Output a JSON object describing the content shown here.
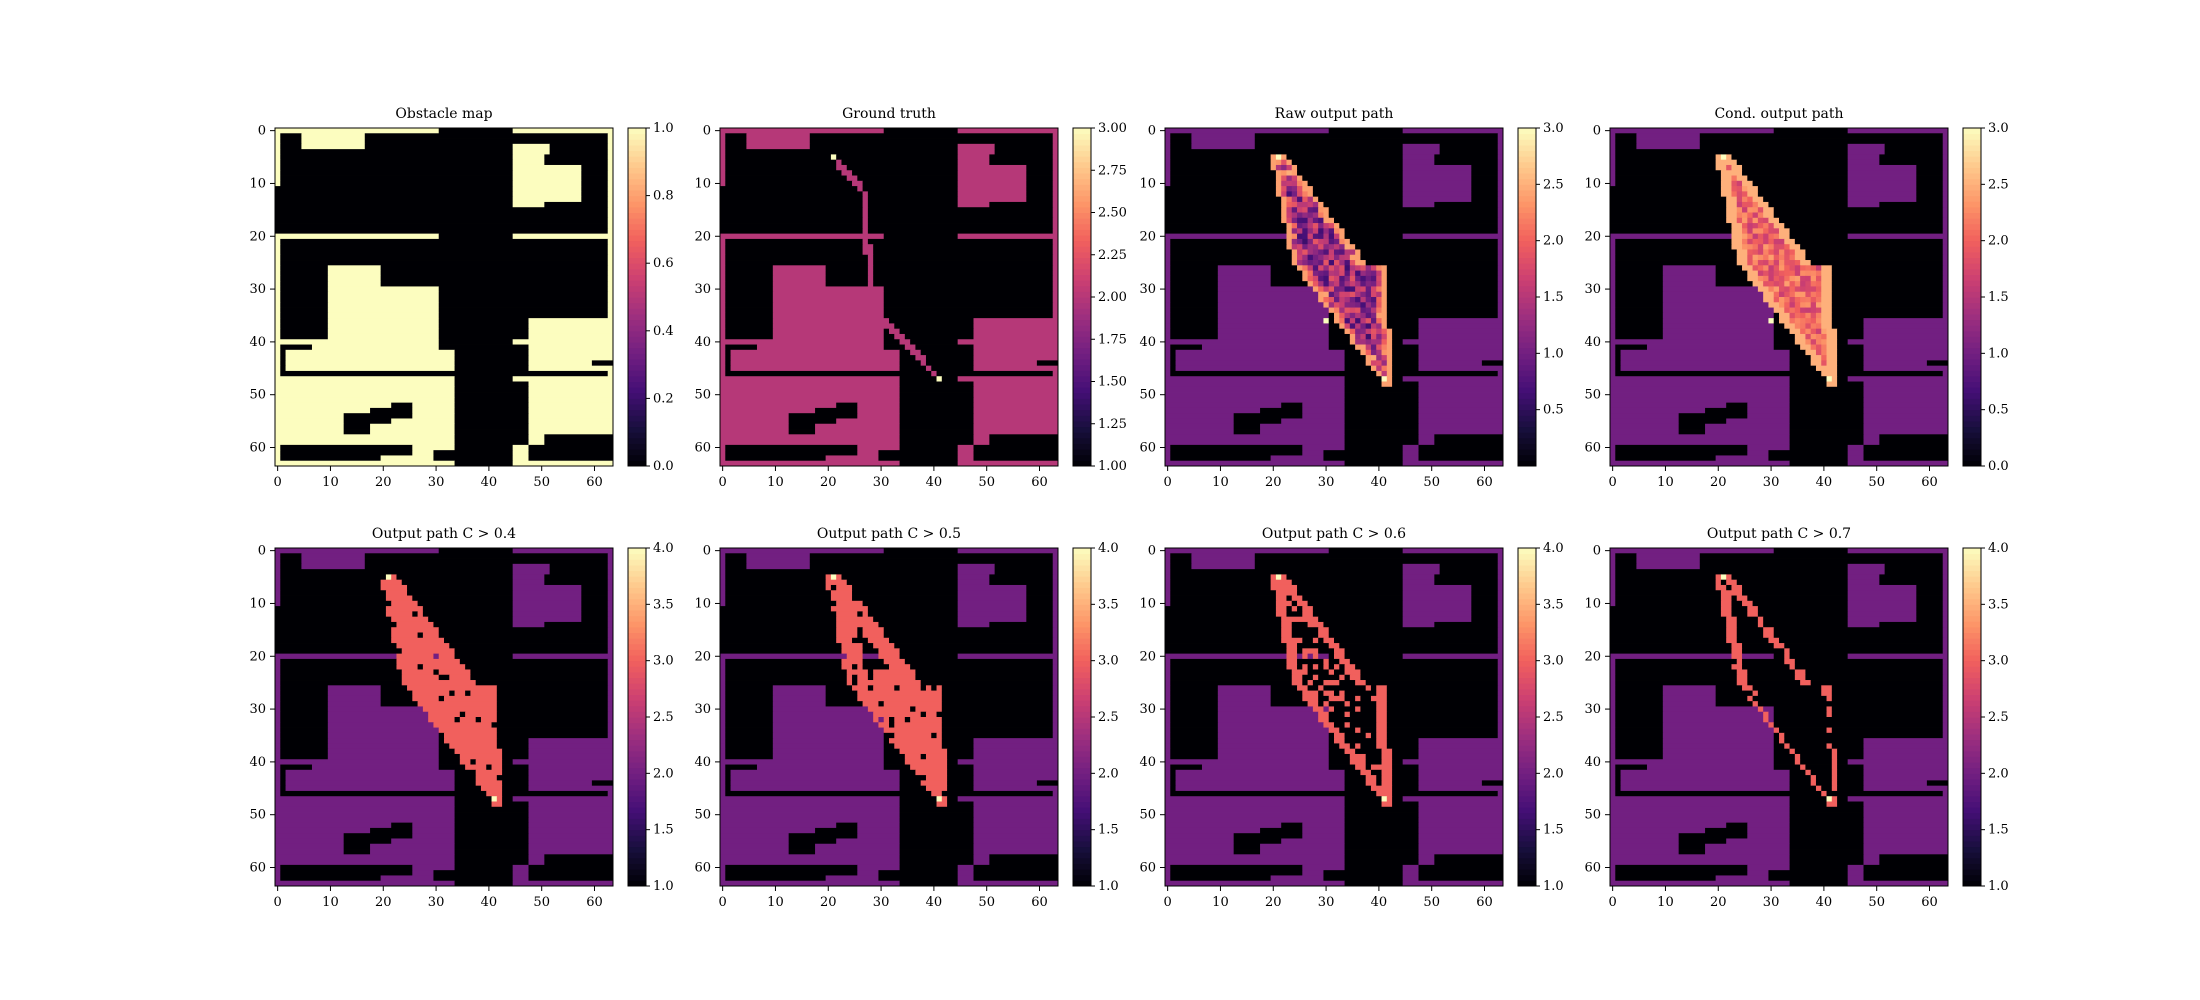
{
  "figure": {
    "type": "heatmap",
    "grid_size": 64,
    "x_ticks": [
      0,
      10,
      20,
      30,
      40,
      50,
      60
    ],
    "y_ticks": [
      0,
      10,
      20,
      30,
      40,
      50,
      60
    ]
  },
  "colormap_stops": [
    "#000004",
    "#180f3d",
    "#440f76",
    "#721f81",
    "#9e2f7f",
    "#cd4071",
    "#f1605d",
    "#fd9668",
    "#feca8d",
    "#fcfdbf"
  ],
  "chart_data": [
    {
      "type": "heatmap",
      "title": "Obstacle map",
      "colorbar": {
        "min": 0.0,
        "max": 1.0,
        "ticks": [
          "0.0",
          "0.2",
          "0.4",
          "0.6",
          "0.8",
          "1.0"
        ]
      },
      "layers": {
        "free": 1.0,
        "obstacle": 0.0
      }
    },
    {
      "type": "heatmap",
      "title": "Ground truth",
      "colorbar": {
        "min": 1.0,
        "max": 3.0,
        "ticks": [
          "1.00",
          "1.25",
          "1.50",
          "1.75",
          "2.00",
          "2.25",
          "2.50",
          "2.75",
          "3.00"
        ]
      },
      "layers": {
        "free": 2.0,
        "obstacle": 1.0,
        "path": 2.0,
        "endpoints": 3.0
      },
      "path_waypoints": [
        [
          21,
          5
        ],
        [
          27,
          12
        ],
        [
          28,
          33
        ],
        [
          41,
          47
        ]
      ]
    },
    {
      "type": "heatmap",
      "title": "Raw output path",
      "colorbar": {
        "min": 0.0,
        "max": 3.0,
        "ticks": [
          "0.5",
          "1.0",
          "1.5",
          "2.0",
          "2.5",
          "3.0"
        ]
      },
      "layers": {
        "free": 1.0,
        "obstacle": 0.0,
        "path_region": "0.3-2.6",
        "endpoints": 3.0
      }
    },
    {
      "type": "heatmap",
      "title": "Cond. output path",
      "colorbar": {
        "min": 0.0,
        "max": 3.0,
        "ticks": [
          "0.0",
          "0.5",
          "1.0",
          "1.5",
          "2.0",
          "2.5",
          "3.0"
        ]
      },
      "layers": {
        "free": 1.0,
        "obstacle": 0.0,
        "path_region": "1.3-2.6",
        "endpoints": 3.0
      }
    },
    {
      "type": "heatmap",
      "title": "Output path C > 0.4",
      "colorbar": {
        "min": 1.0,
        "max": 4.0,
        "ticks": [
          "1.0",
          "1.5",
          "2.0",
          "2.5",
          "3.0",
          "3.5",
          "4.0"
        ]
      },
      "layers": {
        "free": 2.0,
        "obstacle": 1.0,
        "path": 3.0,
        "endpoints": 4.0
      }
    },
    {
      "type": "heatmap",
      "title": "Output path C > 0.5",
      "colorbar": {
        "min": 1.0,
        "max": 4.0,
        "ticks": [
          "1.0",
          "1.5",
          "2.0",
          "2.5",
          "3.0",
          "3.5",
          "4.0"
        ]
      },
      "layers": {
        "free": 2.0,
        "obstacle": 1.0,
        "path": 3.0,
        "endpoints": 4.0
      }
    },
    {
      "type": "heatmap",
      "title": "Output path C > 0.6",
      "colorbar": {
        "min": 1.0,
        "max": 4.0,
        "ticks": [
          "1.0",
          "1.5",
          "2.0",
          "2.5",
          "3.0",
          "3.5",
          "4.0"
        ]
      },
      "layers": {
        "free": 2.0,
        "obstacle": 1.0,
        "path": 3.0,
        "endpoints": 4.0
      }
    },
    {
      "type": "heatmap",
      "title": "Output path C > 0.7",
      "colorbar": {
        "min": 1.0,
        "max": 4.0,
        "ticks": [
          "1.0",
          "1.5",
          "2.0",
          "2.5",
          "3.0",
          "3.5",
          "4.0"
        ]
      },
      "layers": {
        "free": 2.0,
        "obstacle": 1.0,
        "path": 3.0,
        "endpoints": 4.0
      }
    }
  ],
  "endpoints": {
    "start": [
      21,
      5
    ],
    "goal": [
      41,
      47
    ],
    "waypoint": [
      30,
      36
    ]
  }
}
